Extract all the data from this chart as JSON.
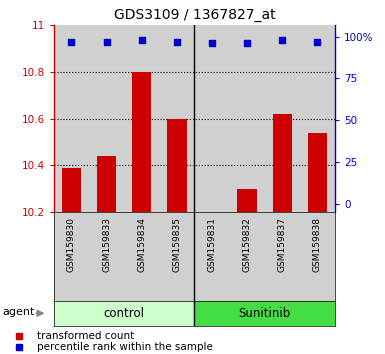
{
  "title": "GDS3109 / 1367827_at",
  "samples": [
    "GSM159830",
    "GSM159833",
    "GSM159834",
    "GSM159835",
    "GSM159831",
    "GSM159832",
    "GSM159837",
    "GSM159838"
  ],
  "bar_values": [
    10.39,
    10.44,
    10.8,
    10.6,
    10.2,
    10.3,
    10.62,
    10.54
  ],
  "percentile_values": [
    97,
    97,
    98,
    97,
    96,
    96,
    98,
    97
  ],
  "ymin": 10.2,
  "ymax": 11.0,
  "yticks": [
    10.2,
    10.4,
    10.6,
    10.8,
    11
  ],
  "right_yticks_vals": [
    0,
    25,
    50,
    75,
    100
  ],
  "right_yticks_labels": [
    "0",
    "25",
    "50",
    "75",
    "100%"
  ],
  "bar_color": "#cc0000",
  "percentile_color": "#0000cc",
  "groups": [
    {
      "label": "control",
      "start": 0,
      "end": 3,
      "color": "#ccffcc",
      "border_color": "#44cc44"
    },
    {
      "label": "Sunitinib",
      "start": 4,
      "end": 7,
      "color": "#44dd44",
      "border_color": "#22aa22"
    }
  ],
  "agent_label": "agent",
  "col_bg_color": "#d0d0d0",
  "legend_items": [
    {
      "label": "transformed count",
      "color": "#cc0000"
    },
    {
      "label": "percentile rank within the sample",
      "color": "#0000cc"
    }
  ]
}
